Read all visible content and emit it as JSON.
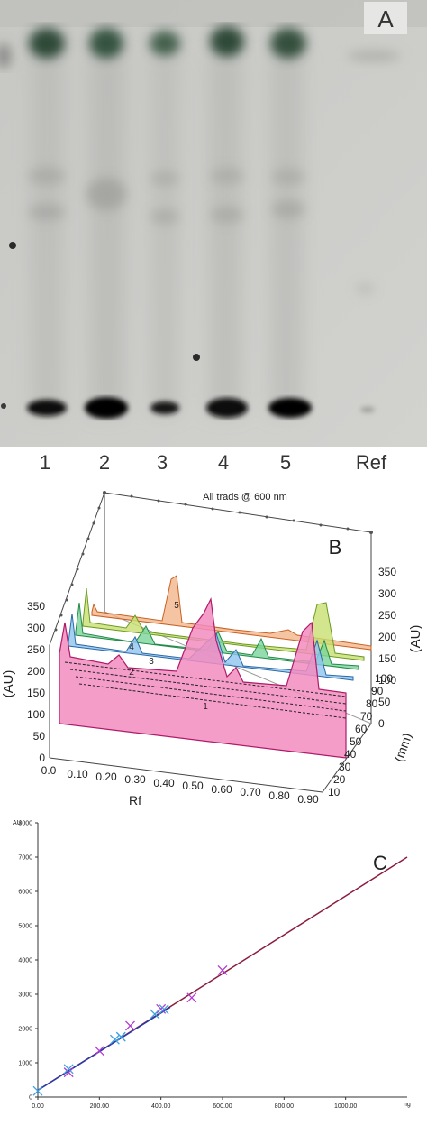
{
  "panel_a": {
    "letter": "A",
    "lane_labels": [
      "1",
      "2",
      "3",
      "4",
      "5",
      "Ref"
    ]
  },
  "panel_b": {
    "letter": "B",
    "title": "All trads @ 600 nm",
    "left_axis_label": "(AU)",
    "left_axis_ticks": [
      "0",
      "50",
      "100",
      "150",
      "200",
      "250",
      "300",
      "350"
    ],
    "right_axis_label": "(AU)",
    "right_axis_ticks": [
      "0",
      "50",
      "100",
      "150",
      "200",
      "250",
      "300",
      "350"
    ],
    "x_axis_label": "Rf",
    "x_axis_ticks": [
      "0.0",
      "0.10",
      "0.20",
      "0.30",
      "0.40",
      "0.50",
      "0.60",
      "0.70",
      "0.80",
      "0.90"
    ],
    "depth_axis_label": "(mm)",
    "depth_axis_ticks": [
      "10",
      "20",
      "30",
      "40",
      "50",
      "60",
      "70",
      "80",
      "90",
      "100"
    ],
    "track_labels": [
      "1",
      "2",
      "3",
      "4",
      "5"
    ],
    "colors": {
      "track1": "#e0308a",
      "track2": "#4a9ad8",
      "track3": "#2faa5a",
      "track4": "#8ac83a",
      "track5": "#e07a3a"
    }
  },
  "panel_c": {
    "letter": "C",
    "y_unit": "AU",
    "x_unit": "ng",
    "y_ticks": [
      "0",
      "1000",
      "2000",
      "3000",
      "4000",
      "5000",
      "6000",
      "7000",
      "8000"
    ],
    "x_ticks": [
      "0.00",
      "200.00",
      "400.00",
      "600.00",
      "800.00",
      "1000.00"
    ],
    "colors": {
      "line": "#8a1c3c",
      "marker_a": "#b03ad0",
      "marker_b": "#3aa0e0"
    }
  },
  "chart_data": {
    "type": "scatter",
    "xlim": [
      0,
      1200
    ],
    "ylim": [
      0,
      8000
    ],
    "series": [
      {
        "points": [
          [
            100,
            720
          ],
          [
            200,
            1350
          ],
          [
            300,
            2080
          ],
          [
            400,
            2570
          ],
          [
            500,
            2900
          ],
          [
            600,
            3700
          ]
        ]
      },
      {
        "points": [
          [
            0,
            180
          ],
          [
            100,
            820
          ],
          [
            250,
            1680
          ],
          [
            270,
            1760
          ],
          [
            380,
            2420
          ],
          [
            410,
            2560
          ]
        ]
      }
    ],
    "fit_line": [
      [
        0,
        200
      ],
      [
        1200,
        7000
      ]
    ]
  }
}
